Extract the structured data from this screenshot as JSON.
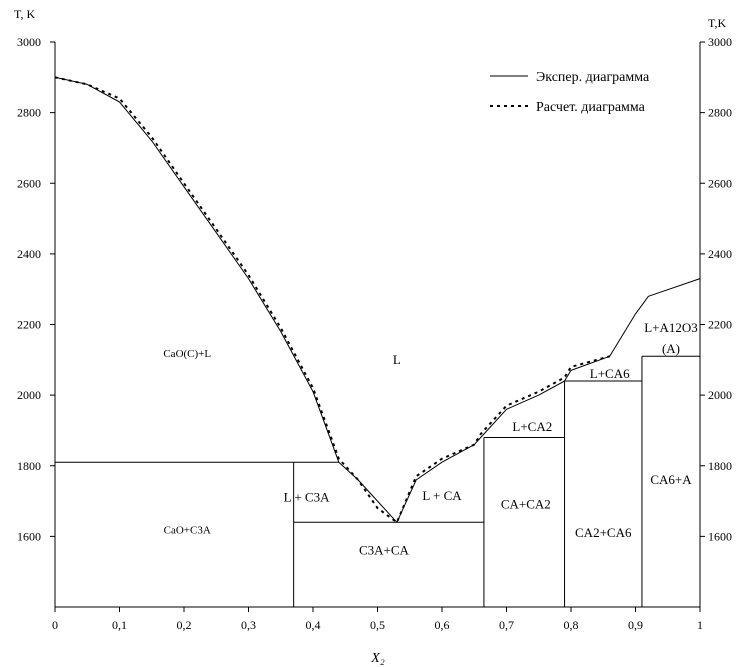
{
  "chart_data": {
    "type": "line",
    "xlabel": "X₂",
    "ylabel_left": "T, K",
    "ylabel_right": "T,K",
    "xlim": [
      0,
      1
    ],
    "ylim": [
      1400,
      3000
    ],
    "x_ticks": [
      "0",
      "0,1",
      "0,2",
      "0,3",
      "0,4",
      "0,5",
      "0,6",
      "0,7",
      "0,8",
      "0,9",
      "1"
    ],
    "y_ticks": [
      "1600",
      "1800",
      "2000",
      "2200",
      "2400",
      "2600",
      "2800",
      "3000"
    ],
    "grid": false,
    "legend_position": "top-right",
    "series": [
      {
        "name": "Экспер. диаграмма",
        "style": "solid",
        "points": [
          [
            0,
            2900
          ],
          [
            0.05,
            2880
          ],
          [
            0.1,
            2830
          ],
          [
            0.15,
            2720
          ],
          [
            0.2,
            2590
          ],
          [
            0.25,
            2460
          ],
          [
            0.3,
            2330
          ],
          [
            0.35,
            2180
          ],
          [
            0.4,
            2010
          ],
          [
            0.43,
            1860
          ],
          [
            0.44,
            1810
          ],
          [
            0.47,
            1760
          ],
          [
            0.5,
            1700
          ],
          [
            0.53,
            1640
          ],
          [
            0.56,
            1760
          ],
          [
            0.6,
            1810
          ],
          [
            0.65,
            1860
          ],
          [
            0.66,
            1880
          ],
          [
            0.7,
            1960
          ],
          [
            0.75,
            2000
          ],
          [
            0.79,
            2040
          ],
          [
            0.8,
            2070
          ],
          [
            0.86,
            2110
          ],
          [
            0.9,
            2230
          ],
          [
            0.92,
            2280
          ],
          [
            1.0,
            2330
          ]
        ]
      },
      {
        "name": "Расчет. диаграмма",
        "style": "dashed",
        "points": [
          [
            0,
            2900
          ],
          [
            0.05,
            2880
          ],
          [
            0.1,
            2840
          ],
          [
            0.15,
            2730
          ],
          [
            0.2,
            2600
          ],
          [
            0.25,
            2470
          ],
          [
            0.3,
            2340
          ],
          [
            0.35,
            2190
          ],
          [
            0.4,
            2020
          ],
          [
            0.43,
            1870
          ],
          [
            0.44,
            1820
          ],
          [
            0.47,
            1760
          ],
          [
            0.5,
            1680
          ],
          [
            0.53,
            1640
          ],
          [
            0.56,
            1770
          ],
          [
            0.6,
            1820
          ],
          [
            0.65,
            1860
          ],
          [
            0.66,
            1890
          ],
          [
            0.7,
            1970
          ],
          [
            0.75,
            2010
          ],
          [
            0.79,
            2050
          ],
          [
            0.8,
            2080
          ],
          [
            0.86,
            2110
          ]
        ]
      }
    ],
    "phase_lines": [
      {
        "x1": 0,
        "y1": 1810,
        "x2": 0.44,
        "y2": 1810
      },
      {
        "x1": 0.37,
        "y1": 1640,
        "x2": 0.665,
        "y2": 1640
      },
      {
        "x1": 0.665,
        "y1": 1880,
        "x2": 0.79,
        "y2": 1880
      },
      {
        "x1": 0.79,
        "y1": 2040,
        "x2": 0.91,
        "y2": 2040
      },
      {
        "x1": 0.91,
        "y1": 2110,
        "x2": 1.0,
        "y2": 2110
      },
      {
        "x1": 0.37,
        "y1": 1400,
        "x2": 0.37,
        "y2": 1810
      },
      {
        "x1": 0.665,
        "y1": 1400,
        "x2": 0.665,
        "y2": 1880
      },
      {
        "x1": 0.79,
        "y1": 1400,
        "x2": 0.79,
        "y2": 2040
      },
      {
        "x1": 0.91,
        "y1": 1400,
        "x2": 0.91,
        "y2": 2110
      }
    ],
    "region_labels": [
      {
        "text": "CaO(C)+L",
        "x": 0.205,
        "y": 2120,
        "size": 11
      },
      {
        "text": "L",
        "x": 0.53,
        "y": 2100,
        "size": 13
      },
      {
        "text": "CaO+C3A",
        "x": 0.205,
        "y": 1620,
        "size": 11
      },
      {
        "text": "L + C3A",
        "x": 0.39,
        "y": 1710,
        "size": 13
      },
      {
        "text": "L + CA",
        "x": 0.6,
        "y": 1715,
        "size": 13
      },
      {
        "text": "C3A+CA",
        "x": 0.51,
        "y": 1560,
        "size": 13
      },
      {
        "text": "CA+CA2",
        "x": 0.73,
        "y": 1690,
        "size": 13
      },
      {
        "text": "L+CA2",
        "x": 0.74,
        "y": 1910,
        "size": 13
      },
      {
        "text": "CA2+CA6",
        "x": 0.85,
        "y": 1610,
        "size": 13
      },
      {
        "text": "L+CA6",
        "x": 0.86,
        "y": 2060,
        "size": 13
      },
      {
        "text": "CA6+A",
        "x": 0.955,
        "y": 1760,
        "size": 13
      },
      {
        "text": "L+A12O3",
        "x": 0.955,
        "y": 2190,
        "size": 13
      },
      {
        "text": "(A)",
        "x": 0.955,
        "y": 2130,
        "size": 13
      }
    ]
  }
}
